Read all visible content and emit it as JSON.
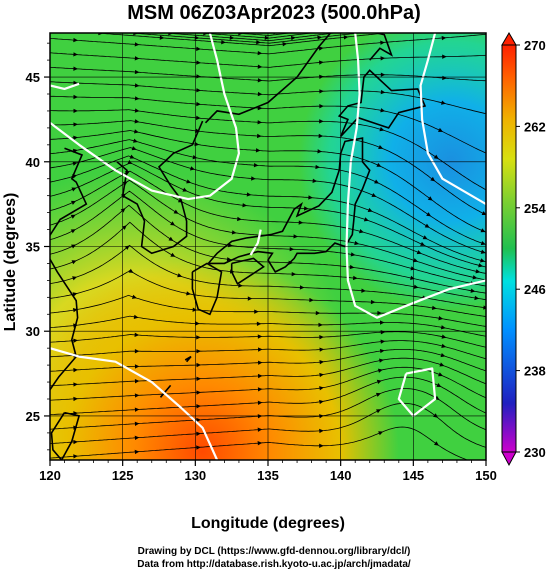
{
  "title": "MSM 06Z03Apr2023 (500.0hPa)",
  "axes": {
    "x_label": "Longitude (degrees)",
    "y_label": "Latitude  (degrees)",
    "x_ticks": [
      "120",
      "125",
      "130",
      "135",
      "140",
      "145",
      "150"
    ],
    "y_ticks": [
      "25",
      "30",
      "35",
      "40",
      "45"
    ],
    "x_range": [
      120,
      150
    ],
    "y_range": [
      22.4,
      47.6
    ]
  },
  "colorbar": {
    "labels": [
      "270",
      "262",
      "254",
      "246",
      "238",
      "230"
    ],
    "range": [
      230,
      270
    ],
    "colors": [
      "#cc00cc",
      "#2020c0",
      "#0080ff",
      "#00e0e0",
      "#20c060",
      "#60d040",
      "#c0e020",
      "#f0c000",
      "#ff8000",
      "#ff2000"
    ]
  },
  "footer": {
    "line1": "Drawing by DCL (https://www.gfd-dennou.org/library/dcl/)",
    "line2": "Data from http://database.rish.kyoto-u.ac.jp/arch/jmadata/"
  }
}
